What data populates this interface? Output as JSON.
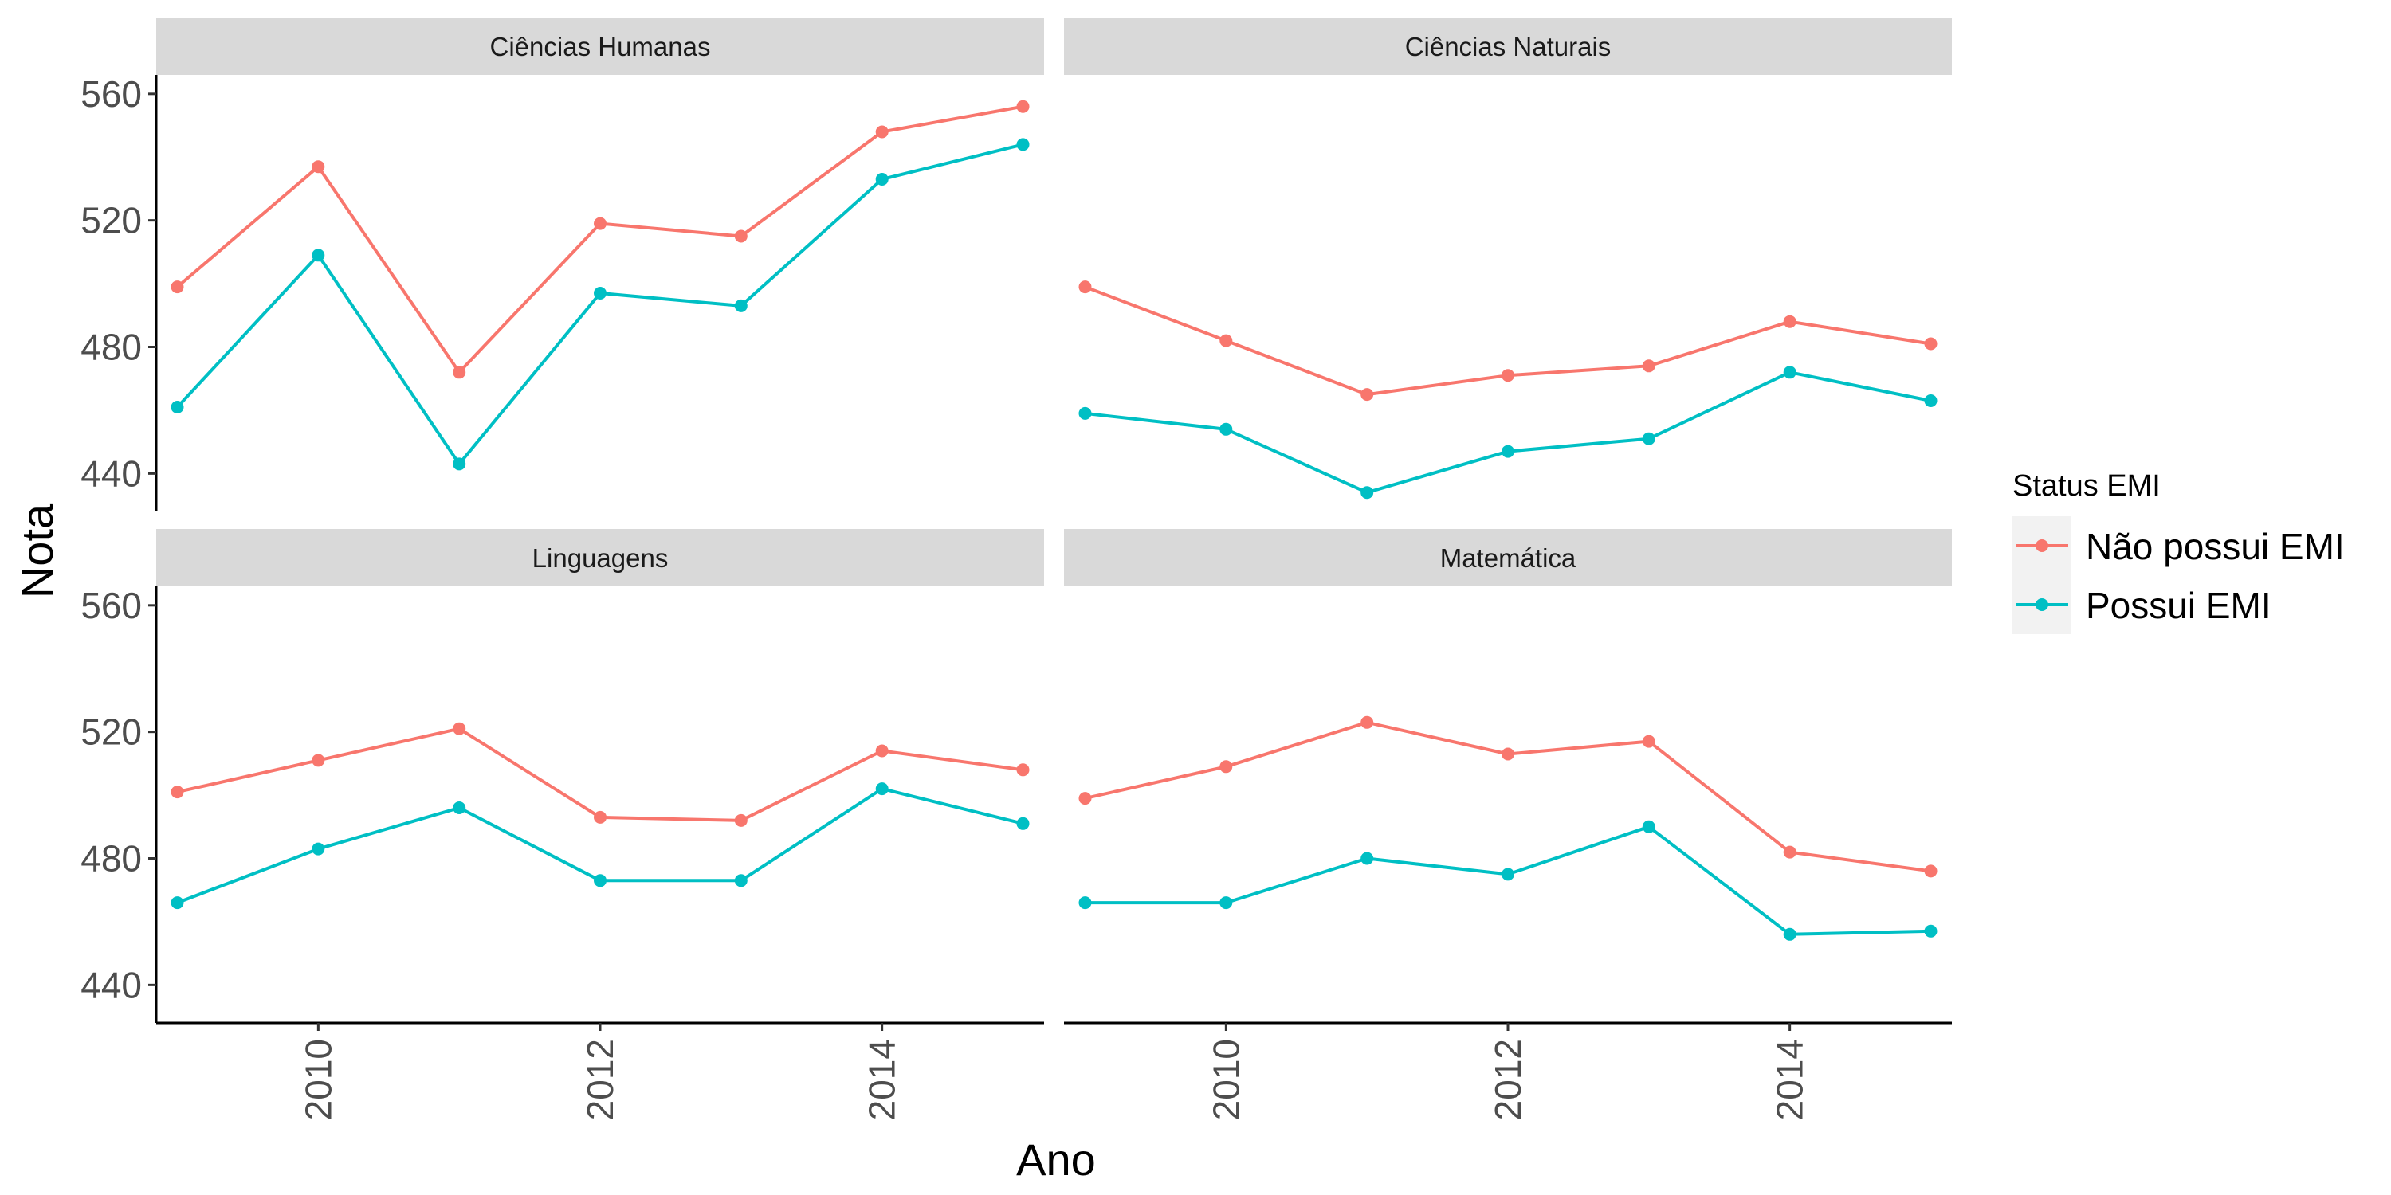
{
  "chart_data": {
    "type": "line",
    "xlabel": "Ano",
    "ylabel": "Nota",
    "xlim": [
      2008.85,
      2015.15
    ],
    "ylim": [
      428,
      566
    ],
    "x_ticks": [
      2010,
      2012,
      2014
    ],
    "y_ticks": [
      440,
      480,
      520,
      560
    ],
    "grid": false,
    "legend": {
      "title": "Status EMI",
      "position": "right",
      "entries": [
        "Não possui EMI",
        "Possui EMI"
      ]
    },
    "colors": {
      "Não possui EMI": "#F8766D",
      "Possui EMI": "#00BFC4"
    },
    "x": [
      2009,
      2010,
      2011,
      2012,
      2013,
      2014,
      2015
    ],
    "panels": [
      {
        "title": "Ciências Humanas",
        "series": [
          {
            "name": "Não possui EMI",
            "values": [
              499,
              537,
              472,
              519,
              515,
              548,
              556
            ]
          },
          {
            "name": "Possui EMI",
            "values": [
              461,
              509,
              443,
              497,
              493,
              533,
              544
            ]
          }
        ]
      },
      {
        "title": "Ciências Naturais",
        "series": [
          {
            "name": "Não possui EMI",
            "values": [
              499,
              482,
              465,
              471,
              474,
              488,
              481
            ]
          },
          {
            "name": "Possui EMI",
            "values": [
              459,
              454,
              434,
              447,
              451,
              472,
              463
            ]
          }
        ]
      },
      {
        "title": "Linguagens",
        "series": [
          {
            "name": "Não possui EMI",
            "values": [
              501,
              511,
              521,
              493,
              492,
              514,
              508
            ]
          },
          {
            "name": "Possui EMI",
            "values": [
              466,
              483,
              496,
              473,
              473,
              502,
              491
            ]
          }
        ]
      },
      {
        "title": "Matemática",
        "series": [
          {
            "name": "Não possui EMI",
            "values": [
              499,
              509,
              523,
              513,
              517,
              482,
              476
            ]
          },
          {
            "name": "Possui EMI",
            "values": [
              466,
              466,
              480,
              475,
              490,
              456,
              457
            ]
          }
        ]
      }
    ]
  }
}
